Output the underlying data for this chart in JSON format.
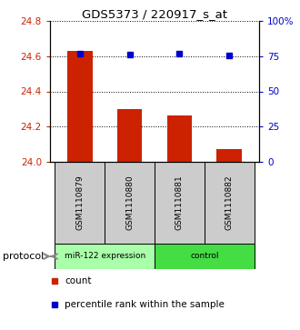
{
  "title": "GDS5373 / 220917_s_at",
  "samples": [
    "GSM1110879",
    "GSM1110880",
    "GSM1110881",
    "GSM1110882"
  ],
  "bar_values": [
    24.63,
    24.3,
    24.265,
    24.07
  ],
  "percentile_values": [
    77,
    76,
    76.5,
    75.5
  ],
  "ylim_left": [
    24.0,
    24.8
  ],
  "ylim_right": [
    0,
    100
  ],
  "yticks_left": [
    24.0,
    24.2,
    24.4,
    24.6,
    24.8
  ],
  "yticks_right": [
    0,
    25,
    50,
    75,
    100
  ],
  "ytick_labels_right": [
    "0",
    "25",
    "50",
    "75",
    "100%"
  ],
  "bar_color": "#cc2200",
  "dot_color": "#0000cc",
  "protocol_groups": [
    {
      "label": "miR-122 expression",
      "samples": [
        0,
        1
      ],
      "color": "#aaffaa"
    },
    {
      "label": "control",
      "samples": [
        2,
        3
      ],
      "color": "#44dd44"
    }
  ],
  "protocol_label": "protocol",
  "legend_count_label": "count",
  "legend_percentile_label": "percentile rank within the sample",
  "bar_width": 0.5
}
